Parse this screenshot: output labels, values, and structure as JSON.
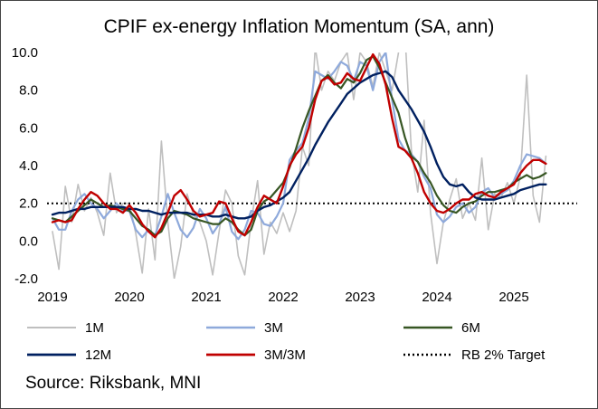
{
  "chart_data": {
    "type": "line",
    "title": "CPIF ex-energy Inflation Momentum (SA, ann)",
    "source": "Source: Riksbank,  MNI",
    "xlabel": "",
    "ylabel": "",
    "ylim": [
      -2.0,
      10.0
    ],
    "xlim": [
      2019.0,
      2026.0
    ],
    "y_ticks": [
      -2.0,
      0.0,
      2.0,
      4.0,
      6.0,
      8.0,
      10.0
    ],
    "y_tick_labels": [
      "-2.0",
      "0.0",
      "2.0",
      "4.0",
      "6.0",
      "8.0",
      "10.0"
    ],
    "x_ticks": [
      2019,
      2020,
      2021,
      2022,
      2023,
      2024,
      2025
    ],
    "x_tick_labels": [
      "2019",
      "2020",
      "2021",
      "2022",
      "2023",
      "2024",
      "2025"
    ],
    "grid": false,
    "legend_position": "bottom",
    "x_start": "2019-01",
    "series": [
      {
        "name": "1M",
        "color": "#BFBFBF",
        "width": 1.6,
        "dash": "",
        "values": [
          0.5,
          -1.5,
          2.9,
          1.0,
          3.0,
          1.6,
          2.3,
          1.5,
          0.3,
          3.6,
          1.5,
          2.0,
          2.0,
          0.4,
          -1.7,
          1.7,
          -1.0,
          5.3,
          1.0,
          -2.0,
          -0.3,
          2.5,
          1.4,
          1.0,
          0.0,
          -1.8,
          0.5,
          2.7,
          2.0,
          -0.8,
          -1.8,
          1.0,
          3.2,
          -0.7,
          1.0,
          0.4,
          1.5,
          0.5,
          1.6,
          5.0,
          4.0,
          10.3,
          8.0,
          9.0,
          8.5,
          9.5,
          10.0,
          7.5,
          10.0,
          9.5,
          8.2,
          10.0,
          9.0,
          8.0,
          10.0,
          11.0,
          4.8,
          2.6,
          6.4,
          1.5,
          -1.2,
          1.0,
          2.2,
          3.3,
          1.2,
          2.0,
          1.1,
          4.4,
          0.6,
          2.5,
          2.3,
          3.1,
          2.0,
          3.4,
          8.8,
          2.4,
          1.0,
          4.5
        ]
      },
      {
        "name": "3M",
        "color": "#8EA9DB",
        "width": 2.2,
        "dash": "",
        "values": [
          1.2,
          0.6,
          0.6,
          1.6,
          2.2,
          2.5,
          2.0,
          1.7,
          1.2,
          1.6,
          2.0,
          1.6,
          1.6,
          0.6,
          0.2,
          0.6,
          0.3,
          1.3,
          2.5,
          1.5,
          0.6,
          0.2,
          0.7,
          1.7,
          1.2,
          0.4,
          0.9,
          1.8,
          0.5,
          0.1,
          0.6,
          1.6,
          1.5,
          0.9,
          0.8,
          1.3,
          2.0,
          4.3,
          4.8,
          5.2,
          6.5,
          9.0,
          8.8,
          8.6,
          9.0,
          9.5,
          9.3,
          8.5,
          9.5,
          9.3,
          8.0,
          9.5,
          10.0,
          7.5,
          5.4,
          4.8,
          4.6,
          4.2,
          3.4,
          2.8,
          1.4,
          1.0,
          1.3,
          1.8,
          2.0,
          1.5,
          1.8,
          2.6,
          2.8,
          2.3,
          2.5,
          2.7,
          3.2,
          4.0,
          4.6,
          4.5,
          4.4,
          4.1
        ]
      },
      {
        "name": "6M",
        "color": "#375623",
        "width": 2.2,
        "dash": "",
        "values": [
          1.2,
          1.1,
          1.0,
          1.3,
          1.6,
          1.9,
          2.2,
          2.0,
          1.8,
          1.9,
          1.8,
          1.7,
          1.6,
          1.2,
          0.8,
          0.6,
          0.3,
          0.5,
          1.2,
          1.6,
          1.5,
          1.4,
          1.2,
          1.1,
          1.0,
          0.9,
          0.9,
          1.2,
          1.0,
          0.6,
          0.3,
          0.6,
          1.6,
          2.1,
          2.3,
          2.7,
          3.1,
          3.9,
          4.9,
          6.0,
          6.9,
          7.7,
          8.5,
          8.8,
          8.4,
          8.1,
          8.6,
          8.4,
          8.9,
          9.6,
          9.8,
          9.2,
          8.4,
          7.6,
          6.8,
          5.5,
          4.5,
          4.2,
          3.6,
          3.1,
          2.4,
          1.9,
          1.6,
          1.5,
          1.8,
          2.0,
          2.1,
          2.4,
          2.6,
          2.6,
          2.7,
          2.8,
          3.1,
          3.3,
          3.5,
          3.3,
          3.4,
          3.6
        ]
      },
      {
        "name": "12M",
        "color": "#002060",
        "width": 2.4,
        "dash": "",
        "values": [
          1.4,
          1.5,
          1.5,
          1.6,
          1.7,
          1.7,
          1.8,
          1.8,
          1.8,
          1.8,
          1.8,
          1.8,
          1.7,
          1.7,
          1.6,
          1.6,
          1.5,
          1.4,
          1.5,
          1.5,
          1.5,
          1.5,
          1.4,
          1.4,
          1.4,
          1.3,
          1.3,
          1.4,
          1.3,
          1.2,
          1.2,
          1.3,
          1.6,
          1.8,
          1.9,
          2.1,
          2.3,
          2.6,
          3.2,
          3.8,
          4.4,
          5.1,
          5.7,
          6.3,
          6.8,
          7.3,
          7.8,
          8.1,
          8.4,
          8.6,
          8.8,
          8.9,
          9.0,
          8.7,
          8.0,
          7.5,
          7.0,
          6.4,
          5.8,
          5.0,
          4.1,
          3.4,
          3.0,
          2.9,
          3.0,
          2.6,
          2.3,
          2.2,
          2.2,
          2.2,
          2.3,
          2.4,
          2.5,
          2.7,
          2.8,
          2.9,
          3.0,
          3.0
        ]
      },
      {
        "name": "3M/3M",
        "color": "#C00000",
        "width": 2.4,
        "dash": "",
        "values": [
          1.0,
          1.1,
          1.0,
          1.1,
          1.7,
          2.2,
          2.6,
          2.4,
          2.0,
          1.7,
          1.7,
          1.5,
          1.9,
          1.5,
          0.9,
          0.5,
          0.2,
          0.7,
          1.5,
          2.4,
          2.7,
          2.2,
          1.6,
          1.3,
          1.4,
          1.5,
          2.1,
          2.0,
          1.2,
          0.5,
          0.3,
          1.0,
          1.8,
          2.4,
          2.2,
          2.0,
          2.9,
          4.0,
          4.6,
          5.0,
          6.0,
          7.5,
          8.5,
          8.7,
          8.3,
          8.4,
          8.9,
          8.6,
          8.5,
          9.2,
          9.9,
          9.4,
          8.3,
          6.5,
          5.0,
          4.8,
          4.4,
          3.6,
          2.6,
          2.0,
          1.6,
          1.5,
          1.7,
          2.0,
          2.2,
          2.2,
          2.5,
          2.6,
          2.4,
          2.3,
          2.6,
          2.8,
          3.0,
          3.6,
          4.0,
          4.3,
          4.3,
          4.1
        ]
      },
      {
        "name": "RB 2% Target",
        "color": "#000000",
        "width": 2.0,
        "dash": "2,3",
        "values": [
          2.0,
          2.0,
          2.0,
          2.0,
          2.0,
          2.0,
          2.0,
          2.0,
          2.0,
          2.0,
          2.0,
          2.0,
          2.0,
          2.0,
          2.0,
          2.0,
          2.0,
          2.0,
          2.0,
          2.0,
          2.0,
          2.0,
          2.0,
          2.0,
          2.0,
          2.0,
          2.0,
          2.0,
          2.0,
          2.0,
          2.0,
          2.0,
          2.0,
          2.0,
          2.0,
          2.0,
          2.0,
          2.0,
          2.0,
          2.0,
          2.0,
          2.0,
          2.0,
          2.0,
          2.0,
          2.0,
          2.0,
          2.0,
          2.0,
          2.0,
          2.0,
          2.0,
          2.0,
          2.0,
          2.0,
          2.0,
          2.0,
          2.0,
          2.0,
          2.0,
          2.0,
          2.0,
          2.0,
          2.0,
          2.0,
          2.0,
          2.0,
          2.0,
          2.0,
          2.0,
          2.0,
          2.0,
          2.0,
          2.0,
          2.0,
          2.0,
          2.0,
          2.0,
          2.0,
          2.0,
          2.0,
          2.0,
          2.0,
          2.0
        ]
      }
    ]
  }
}
